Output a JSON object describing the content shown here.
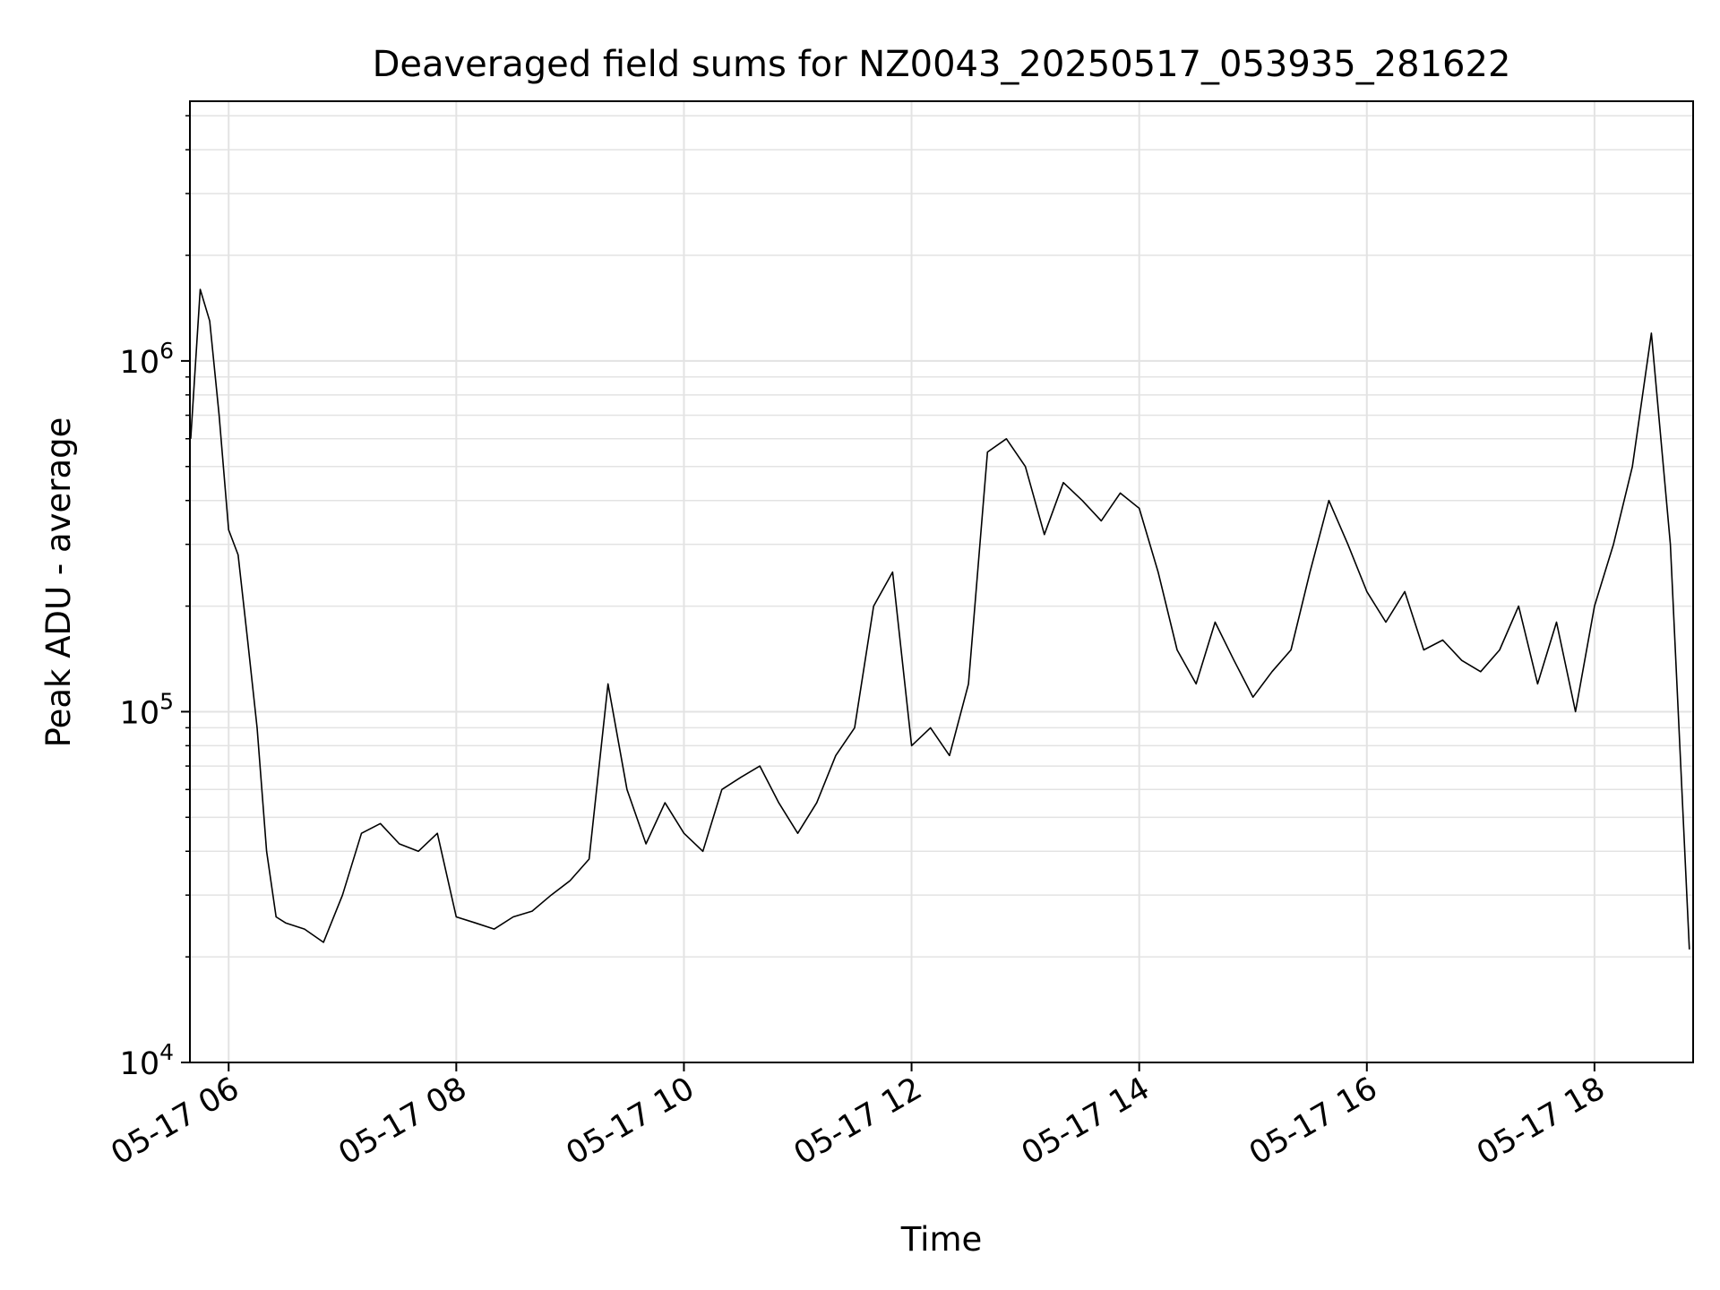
{
  "chart_data": {
    "type": "line",
    "title": "Deaveraged field sums for NZ0043_20250517_053935_281622",
    "xlabel": "Time",
    "ylabel": "Peak ADU - average",
    "y_scale": "log",
    "ylim": [
      10000,
      5500000
    ],
    "xlim": [
      "2025-05-17T05:39:35",
      "2025-05-17T18:52:00"
    ],
    "grid": true,
    "line_color": "#000000",
    "x_ticks": [
      {
        "t": "2025-05-17T06:00",
        "label": "05-17 06"
      },
      {
        "t": "2025-05-17T08:00",
        "label": "05-17 08"
      },
      {
        "t": "2025-05-17T10:00",
        "label": "05-17 10"
      },
      {
        "t": "2025-05-17T12:00",
        "label": "05-17 12"
      },
      {
        "t": "2025-05-17T14:00",
        "label": "05-17 14"
      },
      {
        "t": "2025-05-17T16:00",
        "label": "05-17 16"
      },
      {
        "t": "2025-05-17T18:00",
        "label": "05-17 18"
      }
    ],
    "y_ticks": [
      {
        "value": 10000,
        "base": "10",
        "exp": "4"
      },
      {
        "value": 100000,
        "base": "10",
        "exp": "5"
      },
      {
        "value": 1000000,
        "base": "10",
        "exp": "6"
      }
    ],
    "series": [
      {
        "points": [
          [
            "2025-05-17T05:40",
            600000
          ],
          [
            "2025-05-17T05:45",
            1600000
          ],
          [
            "2025-05-17T05:50",
            1300000
          ],
          [
            "2025-05-17T05:55",
            700000
          ],
          [
            "2025-05-17T06:00",
            330000
          ],
          [
            "2025-05-17T06:05",
            280000
          ],
          [
            "2025-05-17T06:10",
            160000
          ],
          [
            "2025-05-17T06:15",
            90000
          ],
          [
            "2025-05-17T06:20",
            40000
          ],
          [
            "2025-05-17T06:25",
            26000
          ],
          [
            "2025-05-17T06:30",
            25000
          ],
          [
            "2025-05-17T06:40",
            24000
          ],
          [
            "2025-05-17T06:50",
            22000
          ],
          [
            "2025-05-17T07:00",
            30000
          ],
          [
            "2025-05-17T07:10",
            45000
          ],
          [
            "2025-05-17T07:20",
            48000
          ],
          [
            "2025-05-17T07:30",
            42000
          ],
          [
            "2025-05-17T07:40",
            40000
          ],
          [
            "2025-05-17T07:50",
            45000
          ],
          [
            "2025-05-17T08:00",
            26000
          ],
          [
            "2025-05-17T08:10",
            25000
          ],
          [
            "2025-05-17T08:20",
            24000
          ],
          [
            "2025-05-17T08:30",
            26000
          ],
          [
            "2025-05-17T08:40",
            27000
          ],
          [
            "2025-05-17T08:50",
            30000
          ],
          [
            "2025-05-17T09:00",
            33000
          ],
          [
            "2025-05-17T09:10",
            38000
          ],
          [
            "2025-05-17T09:20",
            120000
          ],
          [
            "2025-05-17T09:30",
            60000
          ],
          [
            "2025-05-17T09:40",
            42000
          ],
          [
            "2025-05-17T09:50",
            55000
          ],
          [
            "2025-05-17T10:00",
            45000
          ],
          [
            "2025-05-17T10:10",
            40000
          ],
          [
            "2025-05-17T10:20",
            60000
          ],
          [
            "2025-05-17T10:30",
            65000
          ],
          [
            "2025-05-17T10:40",
            70000
          ],
          [
            "2025-05-17T10:50",
            55000
          ],
          [
            "2025-05-17T11:00",
            45000
          ],
          [
            "2025-05-17T11:10",
            55000
          ],
          [
            "2025-05-17T11:20",
            75000
          ],
          [
            "2025-05-17T11:30",
            90000
          ],
          [
            "2025-05-17T11:40",
            200000
          ],
          [
            "2025-05-17T11:50",
            250000
          ],
          [
            "2025-05-17T12:00",
            80000
          ],
          [
            "2025-05-17T12:10",
            90000
          ],
          [
            "2025-05-17T12:20",
            75000
          ],
          [
            "2025-05-17T12:30",
            120000
          ],
          [
            "2025-05-17T12:40",
            550000
          ],
          [
            "2025-05-17T12:50",
            600000
          ],
          [
            "2025-05-17T13:00",
            500000
          ],
          [
            "2025-05-17T13:10",
            320000
          ],
          [
            "2025-05-17T13:20",
            450000
          ],
          [
            "2025-05-17T13:30",
            400000
          ],
          [
            "2025-05-17T13:40",
            350000
          ],
          [
            "2025-05-17T13:50",
            420000
          ],
          [
            "2025-05-17T14:00",
            380000
          ],
          [
            "2025-05-17T14:10",
            250000
          ],
          [
            "2025-05-17T14:20",
            150000
          ],
          [
            "2025-05-17T14:30",
            120000
          ],
          [
            "2025-05-17T14:40",
            180000
          ],
          [
            "2025-05-17T14:50",
            140000
          ],
          [
            "2025-05-17T15:00",
            110000
          ],
          [
            "2025-05-17T15:10",
            130000
          ],
          [
            "2025-05-17T15:20",
            150000
          ],
          [
            "2025-05-17T15:30",
            250000
          ],
          [
            "2025-05-17T15:40",
            400000
          ],
          [
            "2025-05-17T15:50",
            300000
          ],
          [
            "2025-05-17T16:00",
            220000
          ],
          [
            "2025-05-17T16:10",
            180000
          ],
          [
            "2025-05-17T16:20",
            220000
          ],
          [
            "2025-05-17T16:30",
            150000
          ],
          [
            "2025-05-17T16:40",
            160000
          ],
          [
            "2025-05-17T16:50",
            140000
          ],
          [
            "2025-05-17T17:00",
            130000
          ],
          [
            "2025-05-17T17:10",
            150000
          ],
          [
            "2025-05-17T17:20",
            200000
          ],
          [
            "2025-05-17T17:30",
            120000
          ],
          [
            "2025-05-17T17:40",
            180000
          ],
          [
            "2025-05-17T17:50",
            100000
          ],
          [
            "2025-05-17T18:00",
            200000
          ],
          [
            "2025-05-17T18:10",
            300000
          ],
          [
            "2025-05-17T18:20",
            500000
          ],
          [
            "2025-05-17T18:30",
            1200000
          ],
          [
            "2025-05-17T18:40",
            300000
          ],
          [
            "2025-05-17T18:50",
            21000
          ]
        ]
      }
    ]
  }
}
